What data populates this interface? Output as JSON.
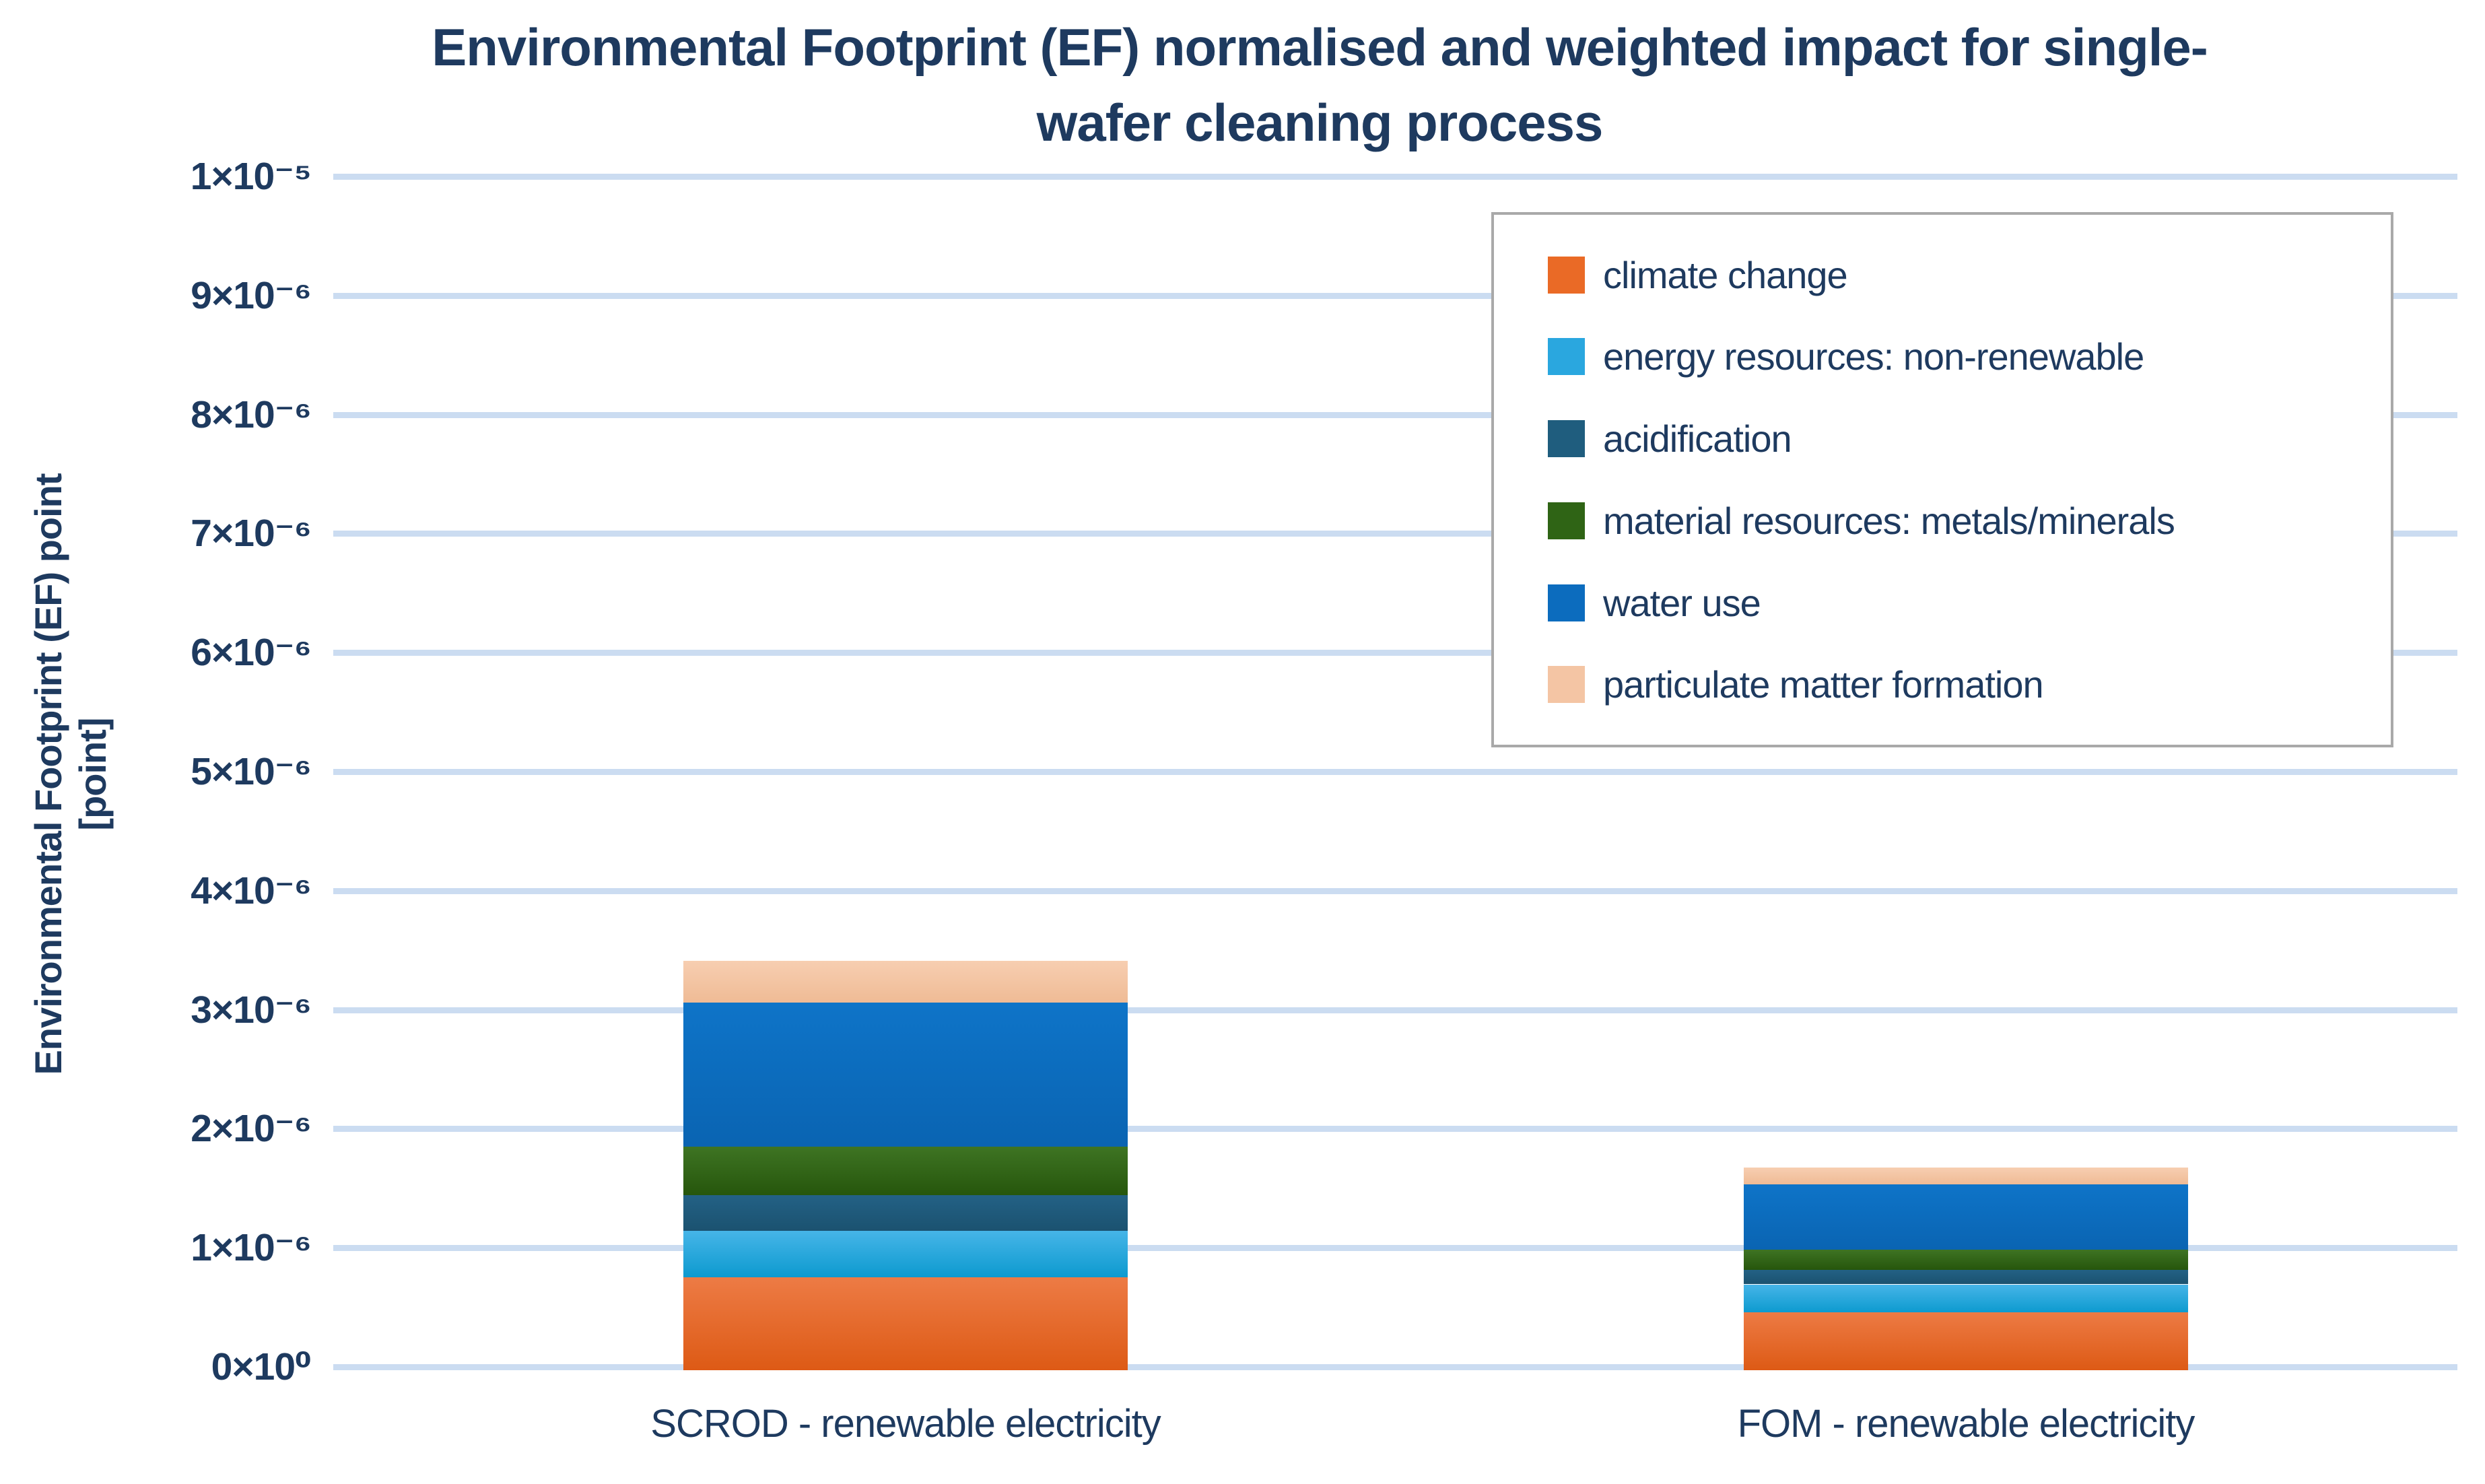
{
  "chart_data": {
    "type": "bar",
    "stacked": true,
    "title": "Environmental Footprint (EF) normalised and weighted impact for single-wafer cleaning process",
    "title_lines": [
      "Environmental Footprint (EF) normalised and weighted impact for single-",
      "wafer cleaning process"
    ],
    "y_axis_title": "Environmental Footprint (EF) point [point]",
    "y_axis_title_lines": [
      "Environmental Footprint (EF) point",
      "[point]"
    ],
    "categories": [
      "SCROD - renewable electricity",
      "FOM - renewable electricity"
    ],
    "series": [
      {
        "name": "climate change",
        "color": "#EA6A26",
        "gradient": [
          "#ED7B45",
          "#DD5A15"
        ],
        "values": [
          7.8e-07,
          4.9e-07
        ]
      },
      {
        "name": "energy resources: non-renewable",
        "color": "#2AA7DF",
        "gradient": [
          "#46B5E8",
          "#0D9ACF"
        ],
        "values": [
          3.9e-07,
          2.3e-07
        ]
      },
      {
        "name": "acidification",
        "color": "#1F5D7E",
        "gradient": [
          "#236185",
          "#1B5270"
        ],
        "values": [
          3e-07,
          1.2e-07
        ]
      },
      {
        "name": "material resources: metals/minerals",
        "color": "#2F6415",
        "gradient": [
          "#3E7423",
          "#26560C"
        ],
        "values": [
          4.1e-07,
          1.7e-07
        ]
      },
      {
        "name": "water use",
        "color": "#0C6CBE",
        "gradient": [
          "#0E74C8",
          "#0A64B2"
        ],
        "values": [
          1.21e-06,
          5.5e-07
        ]
      },
      {
        "name": "particulate matter formation",
        "color": "#F4C5A4",
        "gradient": [
          "#F7CEB1",
          "#EFBB95"
        ],
        "values": [
          3.5e-07,
          1.4e-07
        ]
      }
    ],
    "stack_totals": [
      3.44e-06,
      1.7e-06
    ],
    "y_ticks": [
      {
        "label": "1×10⁻⁵",
        "value": 1e-05
      },
      {
        "label": "9×10⁻⁶",
        "value": 9e-06
      },
      {
        "label": "8×10⁻⁶",
        "value": 8e-06
      },
      {
        "label": "7×10⁻⁶",
        "value": 7e-06
      },
      {
        "label": "6×10⁻⁶",
        "value": 6e-06
      },
      {
        "label": "5×10⁻⁶",
        "value": 5e-06
      },
      {
        "label": "4×10⁻⁶",
        "value": 4e-06
      },
      {
        "label": "3×10⁻⁶",
        "value": 3e-06
      },
      {
        "label": "2×10⁻⁶",
        "value": 2e-06
      },
      {
        "label": "1×10⁻⁶",
        "value": 1e-06
      },
      {
        "label": "0×10⁰",
        "value": 0
      }
    ],
    "ylim": [
      0,
      1e-05
    ],
    "grid": true,
    "legend_position": "upper right",
    "style": {
      "text_color": "#1E3A5F",
      "gridline_color": "#CBDCF1",
      "legend_border_color": "#A9A9A9",
      "background": "#FFFFFF"
    }
  }
}
